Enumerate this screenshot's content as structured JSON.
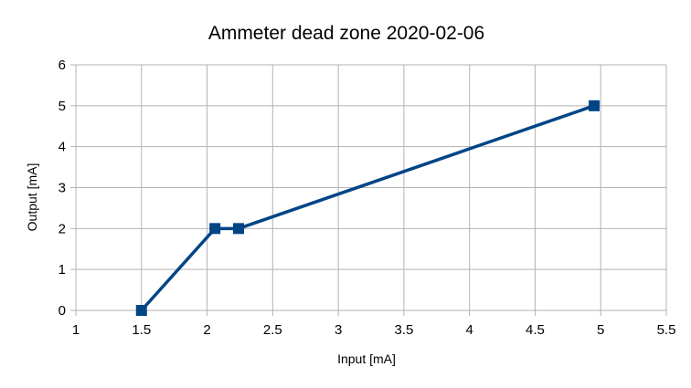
{
  "chart_data": {
    "type": "scatter",
    "title": "Ammeter dead zone 2020-02-06",
    "xlabel": "Input [mA]",
    "ylabel": "Output [mA]",
    "xlim": [
      1,
      5.5
    ],
    "ylim": [
      0,
      6
    ],
    "x_ticks": [
      "1",
      "1.5",
      "2",
      "2.5",
      "3",
      "3.5",
      "4",
      "4.5",
      "5",
      "5.5"
    ],
    "y_ticks": [
      "0",
      "1",
      "2",
      "3",
      "4",
      "5",
      "6"
    ],
    "grid": true,
    "legend": "none",
    "series": [
      {
        "color": "#004586",
        "marker": "square",
        "connected": true,
        "points": [
          {
            "x": 1.5,
            "y": 0
          },
          {
            "x": 2.06,
            "y": 2
          },
          {
            "x": 2.24,
            "y": 2
          },
          {
            "x": 4.95,
            "y": 5
          }
        ]
      }
    ]
  }
}
